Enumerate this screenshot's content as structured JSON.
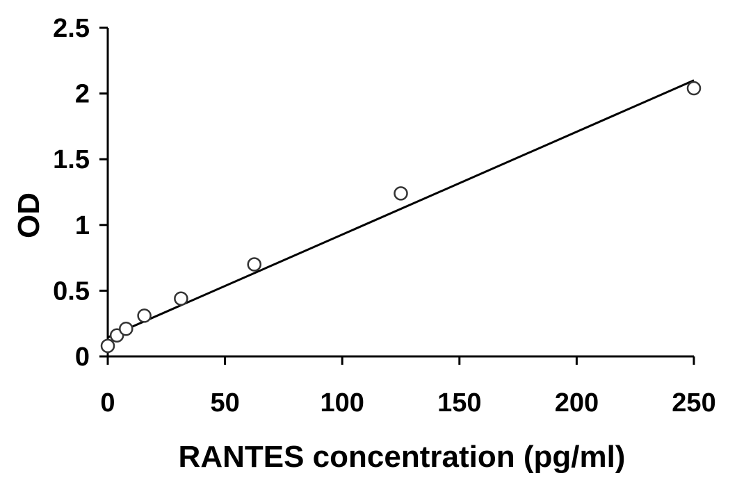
{
  "chart_data": {
    "type": "scatter",
    "title": "",
    "xlabel": "RANTES concentration (pg/ml)",
    "ylabel": "OD",
    "xlim": [
      0,
      250
    ],
    "ylim": [
      0,
      2.5
    ],
    "x_ticks": [
      "0",
      "50",
      "100",
      "150",
      "200",
      "250"
    ],
    "y_ticks": [
      "0",
      "0.5",
      "1",
      "1.5",
      "2",
      "2.5"
    ],
    "grid": false,
    "legend": "none",
    "series": [
      {
        "x": [
          0,
          3.9,
          7.8,
          15.6,
          31.25,
          62.5,
          125,
          250
        ],
        "y": [
          0.08,
          0.16,
          0.21,
          0.31,
          0.44,
          0.7,
          1.24,
          2.04
        ]
      }
    ],
    "trendline": {
      "x": [
        0,
        250
      ],
      "y": [
        0.145,
        2.1
      ]
    }
  }
}
